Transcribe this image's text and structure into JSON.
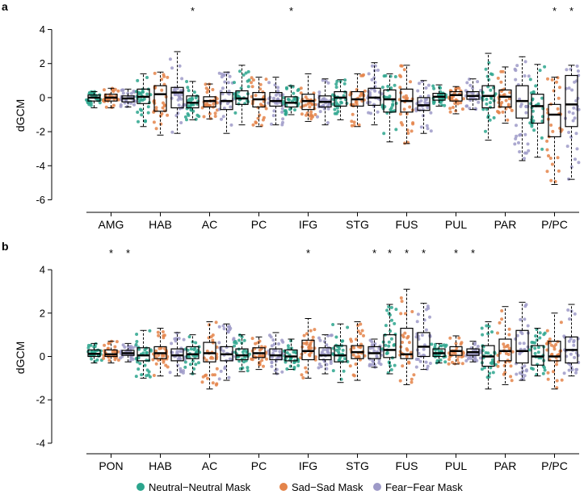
{
  "colors": {
    "neutral": "#2ca58d",
    "sad": "#e4844a",
    "fear": "#9e9ac8",
    "box_stroke": "#000000"
  },
  "legend": [
    {
      "label": "Neutral−Neutral Mask",
      "color_key": "neutral"
    },
    {
      "label": "Sad−Sad Mask",
      "color_key": "sad"
    },
    {
      "label": "Fear−Fear Mask",
      "color_key": "fear"
    }
  ],
  "chart_data": [
    {
      "type": "box",
      "panel_label": "a",
      "ylabel": "dGCM",
      "ylim": [
        -6.5,
        4.5
      ],
      "yticks": [
        -6,
        -4,
        -2,
        0,
        2,
        4
      ],
      "series": [
        "Neutral−Neutral Mask",
        "Sad−Sad Mask",
        "Fear−Fear Mask"
      ],
      "regions": [
        {
          "name": "AMG",
          "boxes": [
            {
              "q1": -0.2,
              "median": 0.0,
              "q3": 0.15,
              "wl": -0.6,
              "wh": 0.35,
              "sig": false
            },
            {
              "q1": -0.2,
              "median": 0.0,
              "q3": 0.2,
              "wl": -0.6,
              "wh": 0.55,
              "sig": false
            },
            {
              "q1": -0.25,
              "median": -0.05,
              "q3": 0.1,
              "wl": -0.55,
              "wh": 0.5,
              "sig": false
            }
          ]
        },
        {
          "name": "HAB",
          "boxes": [
            {
              "q1": -0.35,
              "median": 0.05,
              "q3": 0.5,
              "wl": -1.7,
              "wh": 1.4,
              "sig": false
            },
            {
              "q1": -0.8,
              "median": 0.2,
              "q3": 0.7,
              "wl": -2.2,
              "wh": 1.5,
              "sig": false
            },
            {
              "q1": -0.6,
              "median": 0.3,
              "q3": 0.6,
              "wl": -2.1,
              "wh": 2.7,
              "sig": false
            }
          ]
        },
        {
          "name": "AC",
          "boxes": [
            {
              "q1": -0.6,
              "median": -0.3,
              "q3": 0.1,
              "wl": -1.3,
              "wh": 0.95,
              "sig": true
            },
            {
              "q1": -0.55,
              "median": -0.2,
              "q3": 0.05,
              "wl": -1.25,
              "wh": 0.8,
              "sig": false
            },
            {
              "q1": -0.7,
              "median": -0.2,
              "q3": 0.3,
              "wl": -2.1,
              "wh": 1.5,
              "sig": false
            }
          ]
        },
        {
          "name": "PC",
          "boxes": [
            {
              "q1": -0.4,
              "median": -0.05,
              "q3": 0.4,
              "wl": -1.6,
              "wh": 1.9,
              "sig": false
            },
            {
              "q1": -0.55,
              "median": -0.1,
              "q3": 0.3,
              "wl": -1.7,
              "wh": 1.2,
              "sig": false
            },
            {
              "q1": -0.5,
              "median": -0.2,
              "q3": 0.3,
              "wl": -1.6,
              "wh": 1.2,
              "sig": false
            }
          ]
        },
        {
          "name": "IFG",
          "boxes": [
            {
              "q1": -0.55,
              "median": -0.3,
              "q3": 0.05,
              "wl": -1.0,
              "wh": 0.7,
              "sig": true
            },
            {
              "q1": -0.7,
              "median": -0.2,
              "q3": 0.2,
              "wl": -1.4,
              "wh": 1.4,
              "sig": false
            },
            {
              "q1": -0.55,
              "median": -0.25,
              "q3": 0.1,
              "wl": -1.6,
              "wh": 1.1,
              "sig": false
            }
          ]
        },
        {
          "name": "STG",
          "boxes": [
            {
              "q1": -0.5,
              "median": 0.0,
              "q3": 0.35,
              "wl": -1.3,
              "wh": 1.05,
              "sig": false
            },
            {
              "q1": -0.5,
              "median": -0.1,
              "q3": 0.35,
              "wl": -1.7,
              "wh": 1.4,
              "sig": false
            },
            {
              "q1": -0.45,
              "median": 0.0,
              "q3": 0.55,
              "wl": -1.6,
              "wh": 2.05,
              "sig": false
            }
          ]
        },
        {
          "name": "FUS",
          "boxes": [
            {
              "q1": -0.85,
              "median": -0.1,
              "q3": 0.45,
              "wl": -2.6,
              "wh": 1.4,
              "sig": false
            },
            {
              "q1": -0.85,
              "median": -0.2,
              "q3": 0.5,
              "wl": -2.7,
              "wh": 1.9,
              "sig": false
            },
            {
              "q1": -0.75,
              "median": -0.45,
              "q3": 0.0,
              "wl": -2.1,
              "wh": 1.0,
              "sig": false
            }
          ]
        },
        {
          "name": "PUL",
          "boxes": [
            {
              "q1": -0.15,
              "median": 0.05,
              "q3": 0.25,
              "wl": -0.5,
              "wh": 0.75,
              "sig": false
            },
            {
              "q1": -0.2,
              "median": 0.15,
              "q3": 0.35,
              "wl": -0.95,
              "wh": 0.65,
              "sig": false
            },
            {
              "q1": -0.1,
              "median": 0.1,
              "q3": 0.35,
              "wl": -0.7,
              "wh": 1.1,
              "sig": false
            }
          ]
        },
        {
          "name": "PAR",
          "boxes": [
            {
              "q1": -0.6,
              "median": 0.1,
              "q3": 0.7,
              "wl": -2.5,
              "wh": 2.6,
              "sig": false
            },
            {
              "q1": -0.55,
              "median": 0.05,
              "q3": 0.45,
              "wl": -1.5,
              "wh": 1.8,
              "sig": false
            },
            {
              "q1": -1.2,
              "median": -0.2,
              "q3": 0.7,
              "wl": -3.7,
              "wh": 2.4,
              "sig": false
            }
          ]
        },
        {
          "name": "P/PC",
          "boxes": [
            {
              "q1": -1.5,
              "median": -0.5,
              "q3": 0.2,
              "wl": -3.5,
              "wh": 1.95,
              "sig": false
            },
            {
              "q1": -2.3,
              "median": -1.0,
              "q3": -0.4,
              "wl": -5.1,
              "wh": 1.2,
              "sig": true
            },
            {
              "q1": -1.7,
              "median": -0.4,
              "q3": 1.3,
              "wl": -4.8,
              "wh": 1.9,
              "sig": true
            }
          ]
        }
      ]
    },
    {
      "type": "box",
      "panel_label": "b",
      "ylabel": "dGCM",
      "ylim": [
        -4.3,
        4.3
      ],
      "yticks": [
        -4,
        -2,
        0,
        2,
        4
      ],
      "series": [
        "Neutral−Neutral Mask",
        "Sad−Sad Mask",
        "Fear−Fear Mask"
      ],
      "regions": [
        {
          "name": "PON",
          "boxes": [
            {
              "q1": 0.0,
              "median": 0.12,
              "q3": 0.3,
              "wl": -0.3,
              "wh": 0.6,
              "sig": false
            },
            {
              "q1": 0.0,
              "median": 0.1,
              "q3": 0.3,
              "wl": -0.3,
              "wh": 0.7,
              "sig": true
            },
            {
              "q1": 0.05,
              "median": 0.15,
              "q3": 0.28,
              "wl": -0.25,
              "wh": 0.6,
              "sig": true
            }
          ]
        },
        {
          "name": "HAB",
          "boxes": [
            {
              "q1": -0.2,
              "median": 0.05,
              "q3": 0.4,
              "wl": -1.0,
              "wh": 1.2,
              "sig": false
            },
            {
              "q1": -0.1,
              "median": 0.15,
              "q3": 0.45,
              "wl": -0.9,
              "wh": 1.3,
              "sig": false
            },
            {
              "q1": -0.2,
              "median": 0.05,
              "q3": 0.35,
              "wl": -0.9,
              "wh": 1.1,
              "sig": false
            }
          ]
        },
        {
          "name": "AC",
          "boxes": [
            {
              "q1": -0.1,
              "median": 0.1,
              "q3": 0.45,
              "wl": -0.8,
              "wh": 1.0,
              "sig": false
            },
            {
              "q1": -0.25,
              "median": 0.15,
              "q3": 0.65,
              "wl": -1.5,
              "wh": 1.6,
              "sig": false
            },
            {
              "q1": -0.2,
              "median": 0.1,
              "q3": 0.45,
              "wl": -1.1,
              "wh": 1.5,
              "sig": false
            }
          ]
        },
        {
          "name": "PC",
          "boxes": [
            {
              "q1": -0.15,
              "median": 0.05,
              "q3": 0.35,
              "wl": -0.7,
              "wh": 1.0,
              "sig": false
            },
            {
              "q1": -0.05,
              "median": 0.15,
              "q3": 0.4,
              "wl": -0.6,
              "wh": 0.9,
              "sig": false
            },
            {
              "q1": -0.15,
              "median": 0.05,
              "q3": 0.35,
              "wl": -0.8,
              "wh": 1.1,
              "sig": false
            }
          ]
        },
        {
          "name": "IFG",
          "boxes": [
            {
              "q1": -0.2,
              "median": 0.0,
              "q3": 0.3,
              "wl": -0.6,
              "wh": 0.8,
              "sig": false
            },
            {
              "q1": -0.15,
              "median": 0.25,
              "q3": 0.75,
              "wl": -1.0,
              "wh": 1.75,
              "sig": true
            },
            {
              "q1": -0.15,
              "median": 0.05,
              "q3": 0.4,
              "wl": -0.8,
              "wh": 1.0,
              "sig": false
            }
          ]
        },
        {
          "name": "STG",
          "boxes": [
            {
              "q1": -0.25,
              "median": 0.05,
              "q3": 0.5,
              "wl": -1.2,
              "wh": 1.5,
              "sig": false
            },
            {
              "q1": -0.1,
              "median": 0.2,
              "q3": 0.5,
              "wl": -1.1,
              "wh": 1.6,
              "sig": false
            },
            {
              "q1": -0.1,
              "median": 0.15,
              "q3": 0.45,
              "wl": -0.5,
              "wh": 0.8,
              "sig": true
            }
          ]
        },
        {
          "name": "FUS",
          "boxes": [
            {
              "q1": -0.05,
              "median": 0.3,
              "q3": 1.0,
              "wl": -0.8,
              "wh": 2.4,
              "sig": true
            },
            {
              "q1": -0.1,
              "median": 0.1,
              "q3": 1.3,
              "wl": -1.3,
              "wh": 3.1,
              "sig": true
            },
            {
              "q1": 0.0,
              "median": 0.45,
              "q3": 1.1,
              "wl": -0.6,
              "wh": 2.45,
              "sig": true
            }
          ]
        },
        {
          "name": "PUL",
          "boxes": [
            {
              "q1": 0.0,
              "median": 0.15,
              "q3": 0.35,
              "wl": -0.3,
              "wh": 0.6,
              "sig": false
            },
            {
              "q1": 0.05,
              "median": 0.25,
              "q3": 0.45,
              "wl": -0.35,
              "wh": 0.95,
              "sig": true
            },
            {
              "q1": 0.05,
              "median": 0.2,
              "q3": 0.35,
              "wl": -0.25,
              "wh": 0.7,
              "sig": true
            }
          ]
        },
        {
          "name": "PAR",
          "boxes": [
            {
              "q1": -0.45,
              "median": 0.0,
              "q3": 0.5,
              "wl": -1.5,
              "wh": 1.6,
              "sig": false
            },
            {
              "q1": -0.2,
              "median": 0.25,
              "q3": 0.8,
              "wl": -1.3,
              "wh": 2.3,
              "sig": false
            },
            {
              "q1": -0.3,
              "median": 0.25,
              "q3": 1.2,
              "wl": -1.1,
              "wh": 2.5,
              "sig": false
            }
          ]
        },
        {
          "name": "P/PC",
          "boxes": [
            {
              "q1": -0.4,
              "median": 0.0,
              "q3": 0.5,
              "wl": -0.9,
              "wh": 1.3,
              "sig": false
            },
            {
              "q1": -0.2,
              "median": 0.0,
              "q3": 0.7,
              "wl": -1.5,
              "wh": 2.0,
              "sig": false
            },
            {
              "q1": -0.3,
              "median": 0.3,
              "q3": 0.9,
              "wl": -0.9,
              "wh": 2.4,
              "sig": false
            }
          ]
        }
      ]
    }
  ]
}
